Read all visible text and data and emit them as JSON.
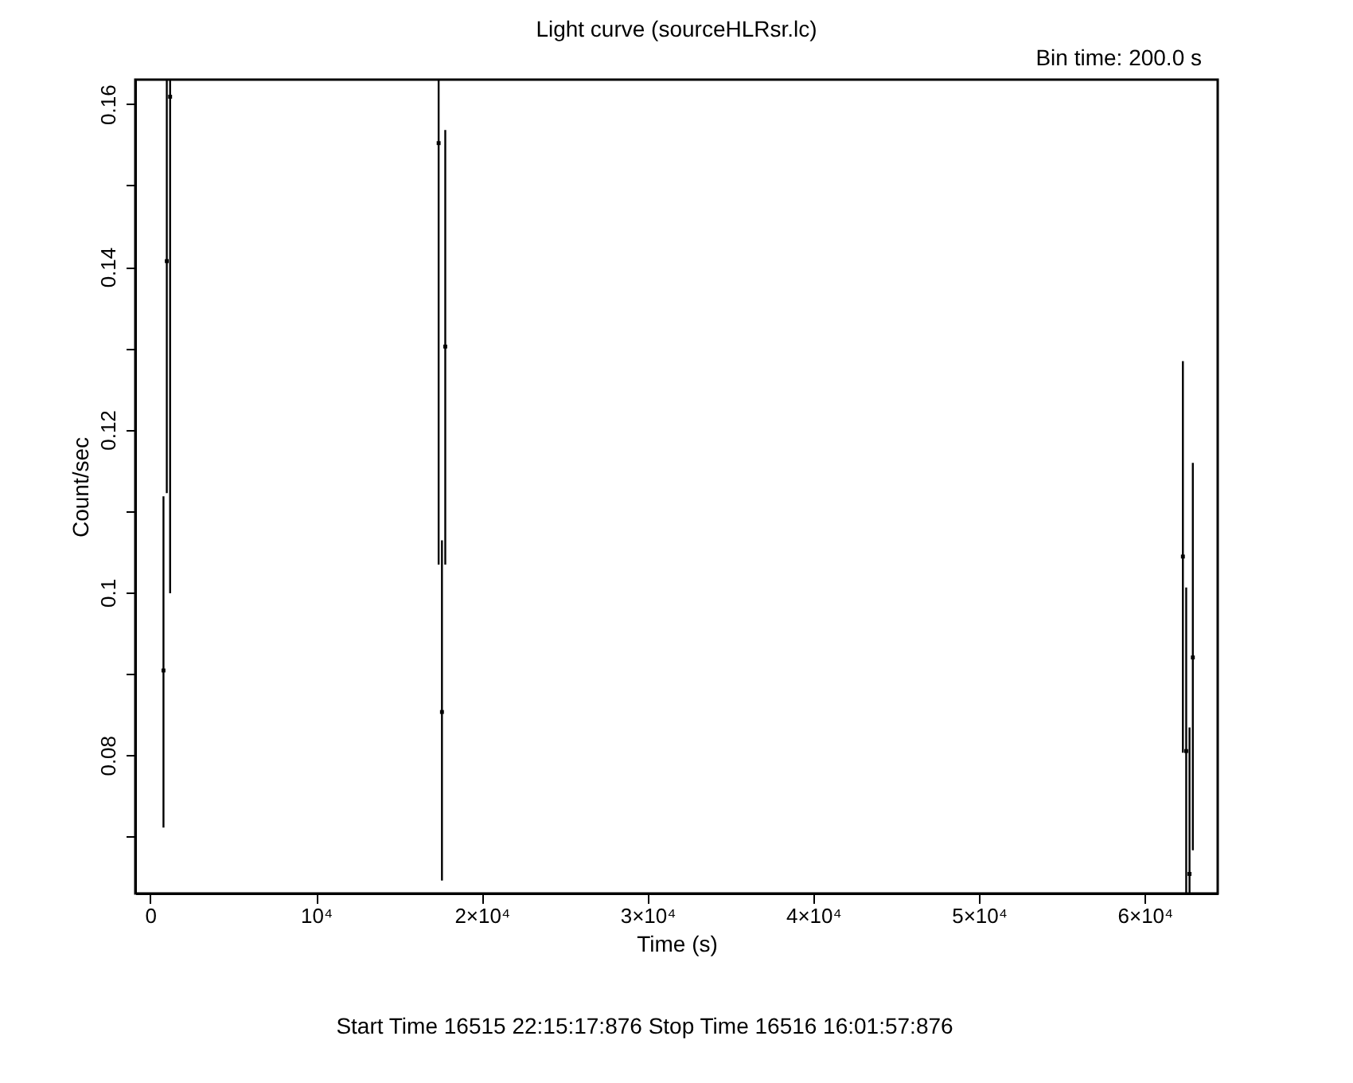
{
  "chart_data": {
    "type": "scatter",
    "title": "Light curve (sourceHLRsr.lc)",
    "subtitle": "Bin time:    200.0     s",
    "xlabel": "Time (s)",
    "ylabel": "Count/sec",
    "annotations": [
      "Start Time 16515 22:15:17:876    Stop Time 16516 16:01:57:876"
    ],
    "x": [
      800,
      1000,
      1200,
      17400,
      17600,
      17800,
      62300,
      62500,
      62700,
      62900
    ],
    "series": [
      {
        "color": "#000000",
        "values": [
          0.0904,
          0.1407,
          0.1609,
          0.1552,
          0.0853,
          0.1302,
          0.1044,
          0.0805,
          0.0654,
          0.092
        ],
        "errors": [
          [
            0.0711,
            0.1118
          ],
          [
            0.1122,
            0.163
          ],
          [
            0.0999,
            0.163
          ],
          [
            0.1034,
            0.163
          ],
          [
            0.0646,
            0.1064
          ],
          [
            0.1034,
            0.1568
          ],
          [
            0.0803,
            0.1284
          ],
          [
            0.063,
            0.1006
          ],
          [
            0.063,
            0.0834
          ],
          [
            0.0683,
            0.1159
          ]
        ]
      }
    ],
    "xlim": [
      -900,
      64400
    ],
    "ylim": [
      0.063,
      0.163
    ],
    "xticks": [
      0,
      {
        "value": 10000,
        "label": "10⁴"
      },
      {
        "value": 20000,
        "label": "2×10⁴"
      },
      {
        "value": 30000,
        "label": "3×10⁴"
      },
      {
        "value": 40000,
        "label": "4×10⁴"
      },
      {
        "value": 50000,
        "label": "5×10⁴"
      },
      {
        "value": 60000,
        "label": "6×10⁴"
      }
    ],
    "yticks": [
      {
        "value": 0.07,
        "label": null
      },
      0.08,
      {
        "value": 0.09,
        "label": null
      },
      0.1,
      {
        "value": 0.11,
        "label": null
      },
      0.12,
      {
        "value": 0.13,
        "label": null
      },
      0.14,
      {
        "value": 0.15,
        "label": null
      },
      0.16
    ],
    "marker": "square",
    "grid": false
  }
}
